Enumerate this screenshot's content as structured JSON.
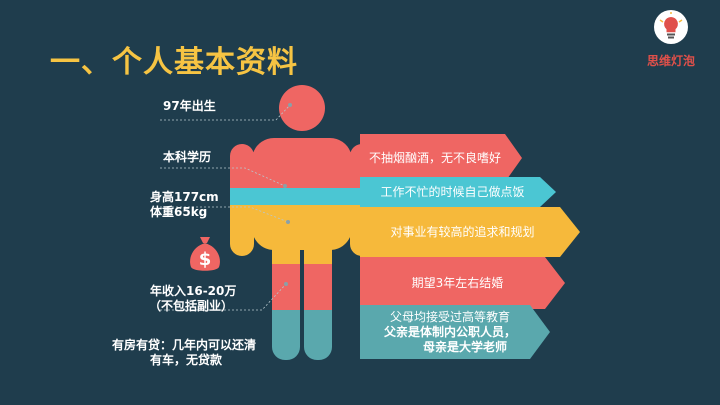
{
  "slide": {
    "title": "一、个人基本资料",
    "logo_text": "思维灯泡"
  },
  "labels": {
    "born": "97年出生",
    "education": "本科学历",
    "height": "身高177cm",
    "weight": "体重65kg",
    "income_line1": "年收入16-20万",
    "income_line2": "（不包括副业）",
    "house_line1": "有房有贷：几年内可以还清",
    "house_line2": "有车，无贷款"
  },
  "banners": {
    "habits": "不抽烟酗酒，无不良嗜好",
    "cooking": "工作不忙的时候自己做点饭",
    "career": "对事业有较高的追求和规划",
    "marriage": "期望3年左右结婚",
    "parents_line1": "父母均接受过高等教育",
    "parents_line2": "父亲是体制内公职人员，",
    "parents_line3": "母亲是大学老师"
  },
  "icons": {
    "logo": "lightbulb-icon",
    "money": "money-bag-icon"
  },
  "colors": {
    "background": "#1f3d4d",
    "title": "#f6c443",
    "red": "#ef6663",
    "cyan": "#4bc6d3",
    "yellow": "#f6b93b",
    "teal": "#5aa8ad",
    "logo_text": "#e0504a"
  }
}
